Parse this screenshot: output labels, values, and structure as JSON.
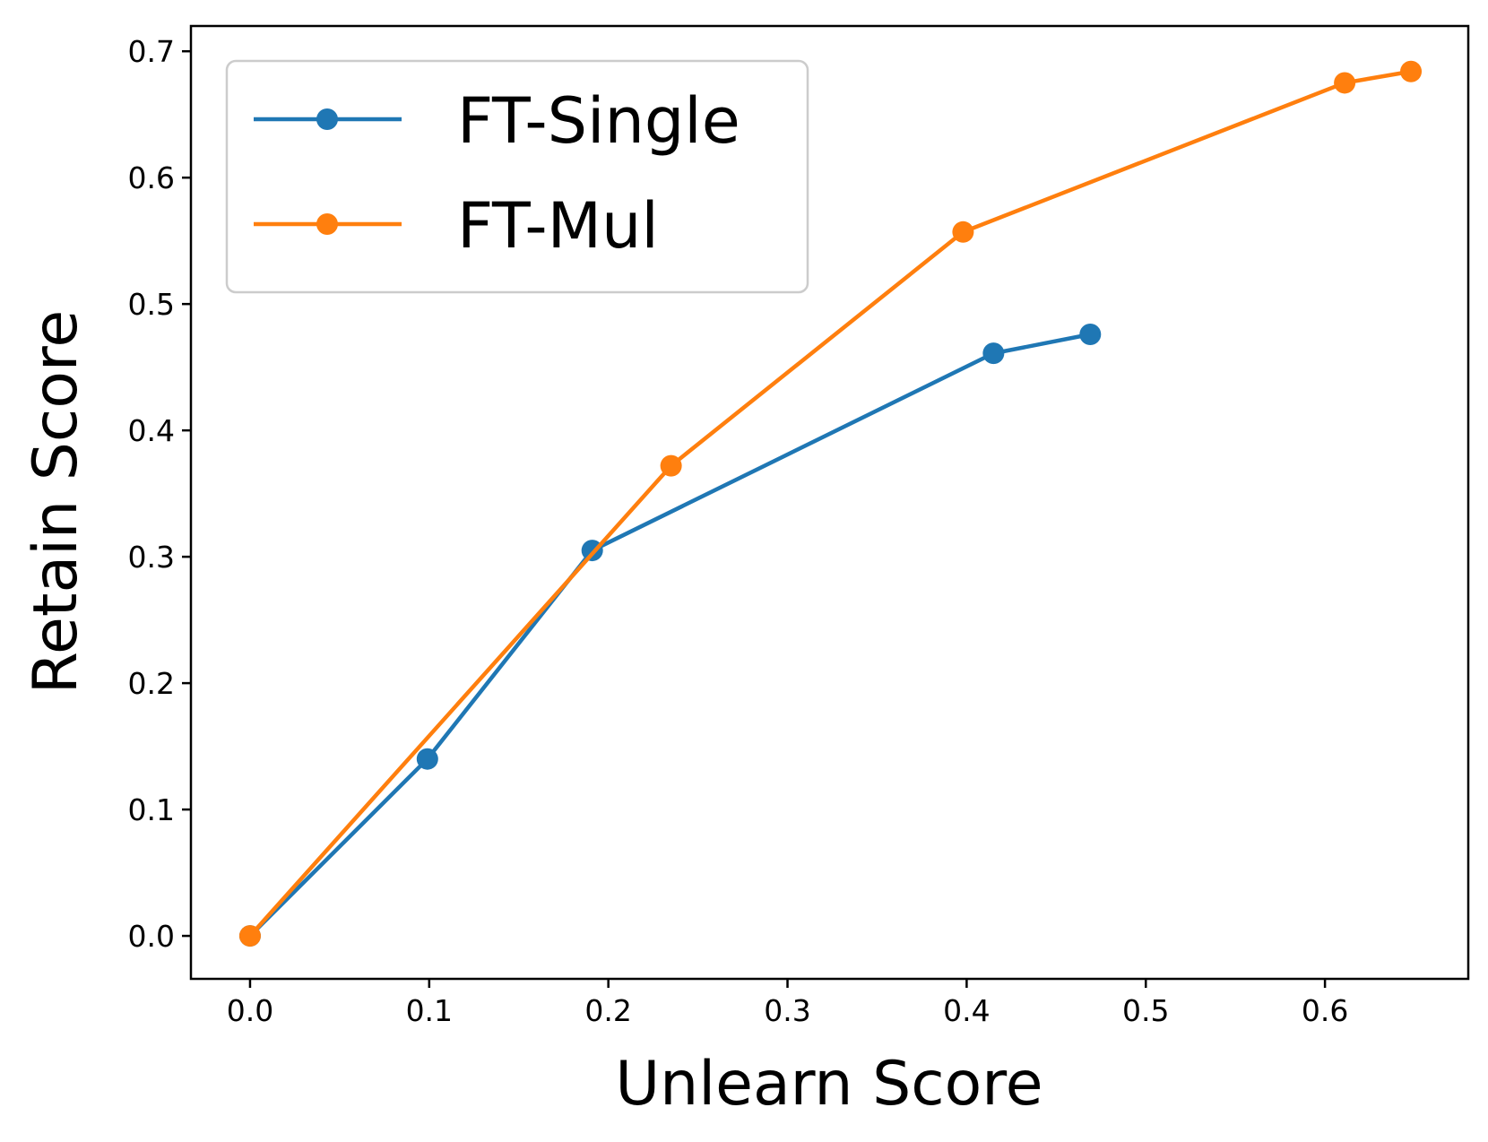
{
  "chart_data": {
    "type": "line",
    "xlabel": "Unlearn Score",
    "ylabel": "Retain Score",
    "xlim": [
      -0.033,
      0.68
    ],
    "ylim": [
      -0.034,
      0.72
    ],
    "xticks": [
      0.0,
      0.1,
      0.2,
      0.3,
      0.4,
      0.5,
      0.6
    ],
    "xtick_labels": [
      "0.0",
      "0.1",
      "0.2",
      "0.3",
      "0.4",
      "0.5",
      "0.6"
    ],
    "yticks": [
      0.0,
      0.1,
      0.2,
      0.3,
      0.4,
      0.5,
      0.6,
      0.7
    ],
    "ytick_labels": [
      "0.0",
      "0.1",
      "0.2",
      "0.3",
      "0.4",
      "0.5",
      "0.6",
      "0.7"
    ],
    "grid": false,
    "legend_position": "top-left",
    "series": [
      {
        "name": "FT-Single",
        "color": "#1f77b4",
        "marker": "circle",
        "x": [
          0.0,
          0.099,
          0.191,
          0.415,
          0.469
        ],
        "y": [
          0.0,
          0.14,
          0.305,
          0.461,
          0.476
        ]
      },
      {
        "name": "FT-Mul",
        "color": "#ff7f0e",
        "marker": "circle",
        "x": [
          0.0,
          0.235,
          0.398,
          0.611,
          0.648
        ],
        "y": [
          0.0,
          0.372,
          0.557,
          0.675,
          0.684
        ]
      }
    ]
  }
}
